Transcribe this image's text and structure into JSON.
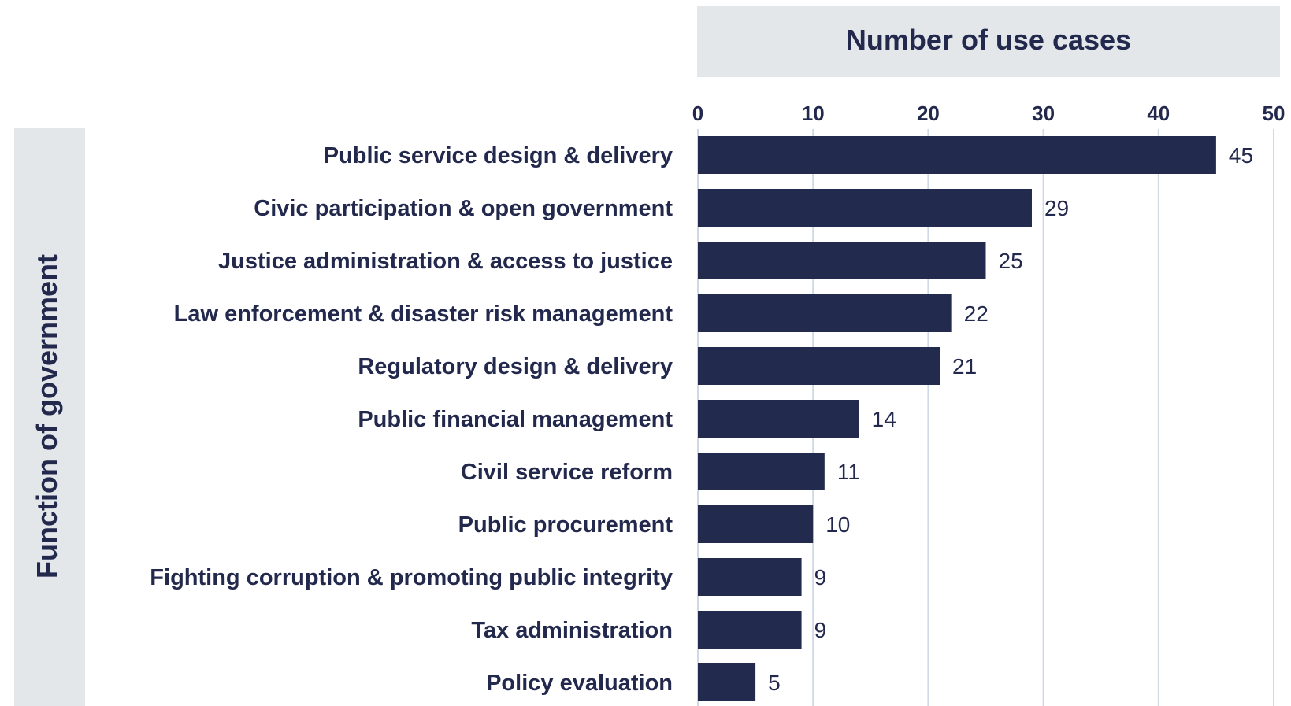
{
  "colors": {
    "bar": "#222a4d",
    "panel": "#e3e7ea",
    "grid": "#cfd9e6",
    "text": "#23294d"
  },
  "chart_data": {
    "type": "bar",
    "orientation": "horizontal",
    "xlabel": "Number of use cases",
    "ylabel": "Function of government",
    "xlim": [
      0,
      50
    ],
    "xticks": [
      0,
      10,
      20,
      30,
      40,
      50
    ],
    "grid": true,
    "categories": [
      "Public service design & delivery",
      "Civic participation & open government",
      "Justice administration & access to justice",
      "Law enforcement & disaster risk management",
      "Regulatory design & delivery",
      "Public financial management",
      "Civil service reform",
      "Public procurement",
      "Fighting corruption & promoting public integrity",
      "Tax administration",
      "Policy evaluation"
    ],
    "values": [
      45,
      29,
      25,
      22,
      21,
      14,
      11,
      10,
      9,
      9,
      5
    ]
  }
}
